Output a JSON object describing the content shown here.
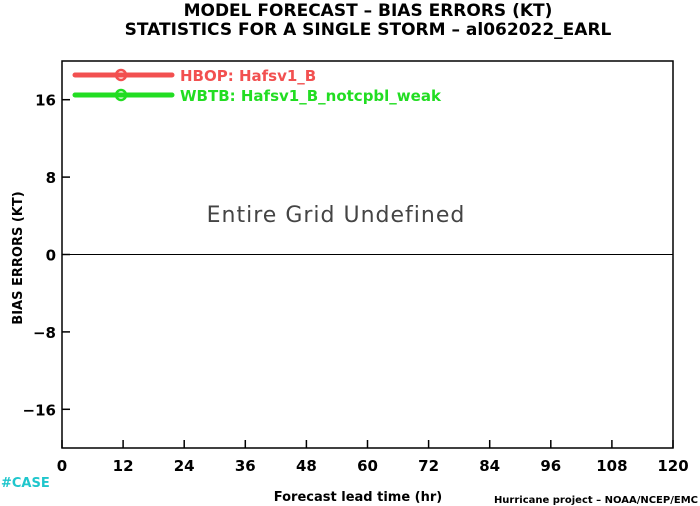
{
  "chart_data": {
    "type": "line",
    "title": "MODEL FORECAST – BIAS ERRORS (KT)",
    "subtitle": "STATISTICS FOR A SINGLE STORM – al062022_EARL",
    "xlabel": "Forecast lead time (hr)",
    "ylabel": "BIAS ERRORS (KT)",
    "xlim": [
      0,
      120
    ],
    "ylim": [
      -20,
      20
    ],
    "x_ticks": [
      0,
      12,
      24,
      36,
      48,
      60,
      72,
      84,
      96,
      108,
      120
    ],
    "y_ticks": [
      -16,
      -8,
      0,
      8,
      16
    ],
    "x_tick_labels": [
      "0",
      "12",
      "24",
      "36",
      "48",
      "60",
      "72",
      "84",
      "96",
      "108",
      "120"
    ],
    "y_tick_labels": [
      "−16",
      "−8",
      "0",
      "8",
      "16"
    ],
    "zero_line": true,
    "grid": false,
    "legend_position": "top-left",
    "series": [
      {
        "name": "HBOP: Hafsv1_B",
        "color": "#f25050",
        "values": []
      },
      {
        "name": "WBTB: Hafsv1_B_notcpbl_weak",
        "color": "#22dd22",
        "values": []
      }
    ],
    "annotation": "Entire Grid Undefined",
    "credit": "Hurricane project – NOAA/NCEP/EMC",
    "tag": "#CASE",
    "tag_color": "#1fc6cc"
  }
}
